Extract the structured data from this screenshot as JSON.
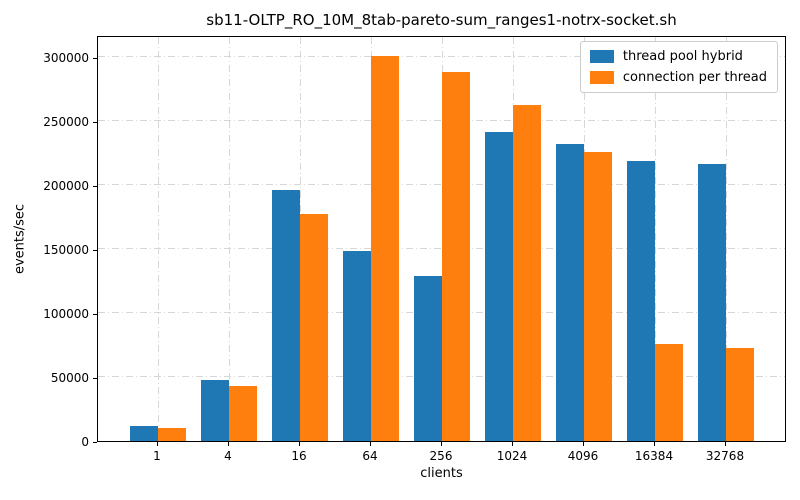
{
  "chart_data": {
    "type": "bar",
    "title": "sb11-OLTP_RO_10M_8tab-pareto-sum_ranges1-notrx-socket.sh",
    "xlabel": "clients",
    "ylabel": "events/sec",
    "categories": [
      "1",
      "4",
      "16",
      "64",
      "256",
      "1024",
      "4096",
      "16384",
      "32768"
    ],
    "series": [
      {
        "name": "thread pool hybrid",
        "color": "#1f77b4",
        "values": [
          11500,
          47500,
          196000,
          148500,
          129000,
          241500,
          232000,
          219000,
          216000
        ]
      },
      {
        "name": "connection per thread",
        "color": "#ff7f0e",
        "values": [
          10500,
          43000,
          177000,
          301000,
          288000,
          262000,
          225500,
          75500,
          72500
        ]
      }
    ],
    "yticks": [
      0,
      50000,
      100000,
      150000,
      200000,
      250000,
      300000
    ],
    "ylim": [
      0,
      317000
    ],
    "grid": true,
    "grid_style": "dash-dot",
    "legend_position": "upper right",
    "background_color": "#ffffff",
    "spine_color": "#000000",
    "grid_color": "#d7d7d7"
  }
}
